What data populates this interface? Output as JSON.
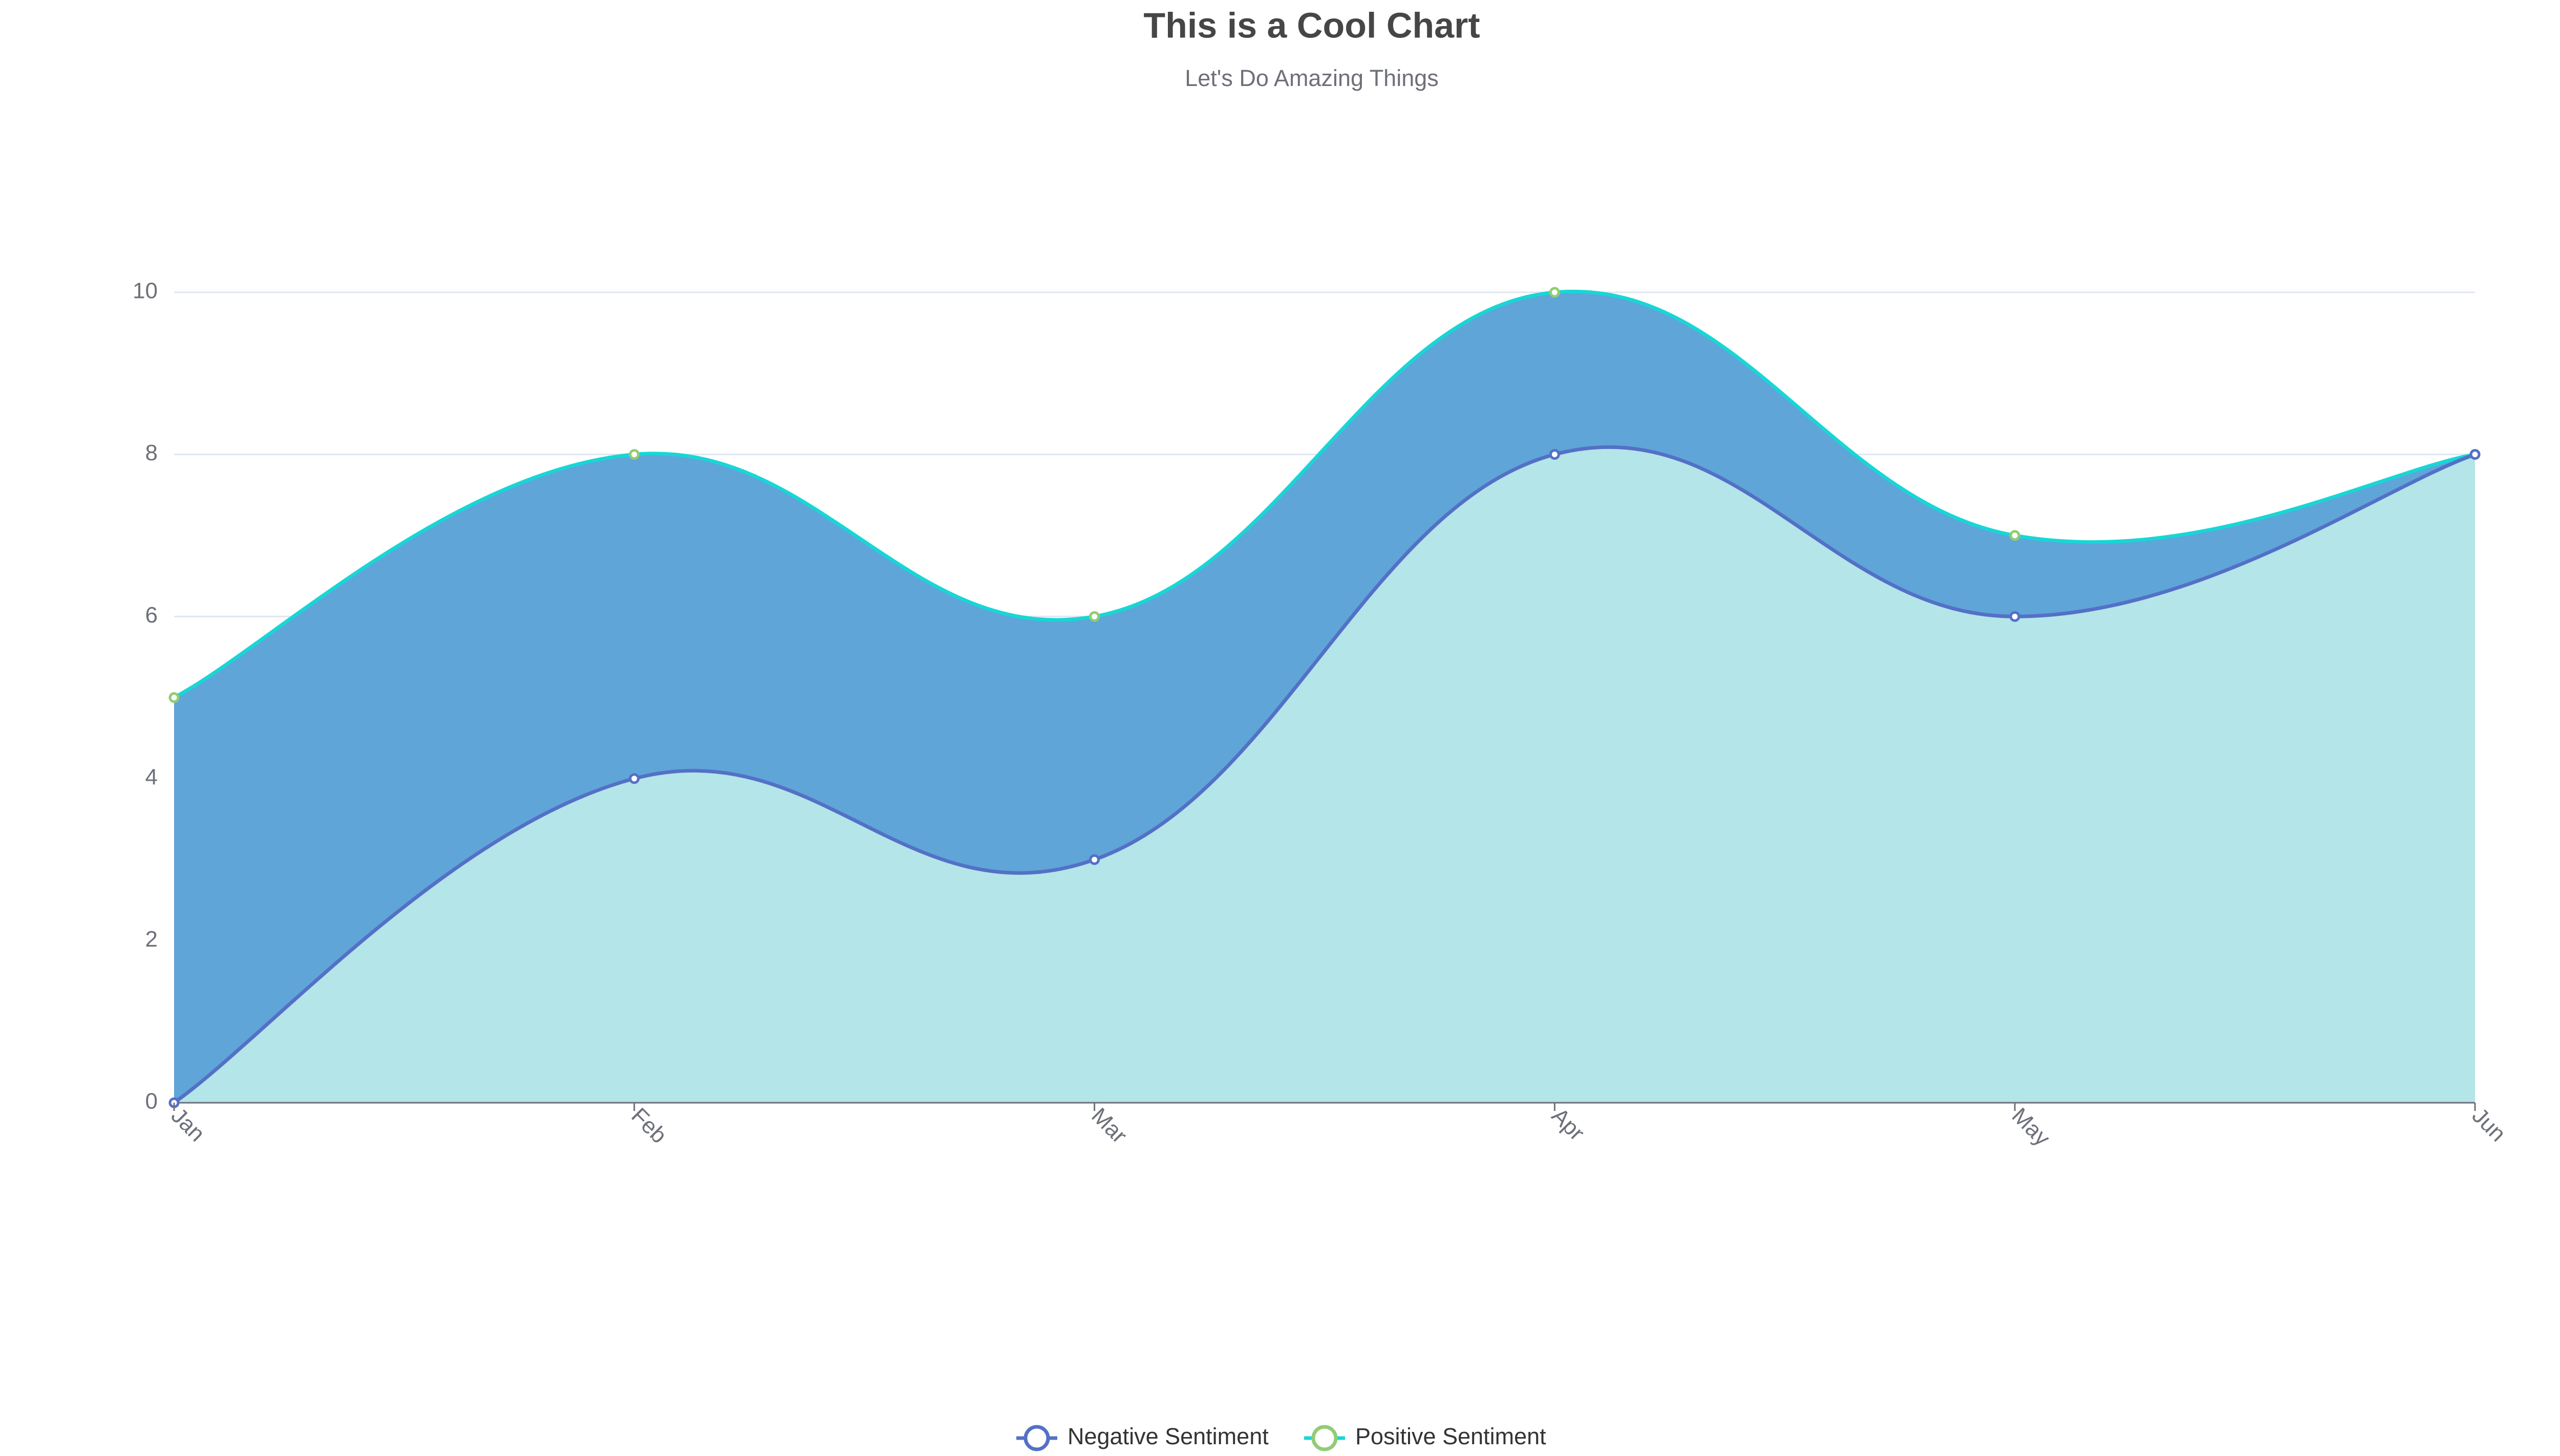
{
  "chart_data": {
    "type": "area",
    "title": "This is a Cool Chart",
    "subtitle": "Let's Do Amazing Things",
    "categories": [
      "Jan",
      "Feb",
      "Mar",
      "Apr",
      "May",
      "Jun"
    ],
    "series": [
      {
        "name": "Negative Sentiment",
        "color": "#5470c6",
        "marker_color": "#5470c6",
        "fill": "#b3e5e9",
        "values": [
          0,
          4,
          3,
          8,
          6,
          8
        ]
      },
      {
        "name": "Positive Sentiment",
        "color": "#18d6d6",
        "marker_color": "#91cc75",
        "fill": "#5fa5d8",
        "values": [
          5,
          8,
          6,
          10,
          7,
          8
        ]
      }
    ],
    "ylim": [
      0,
      10
    ],
    "yticks": [
      0,
      2,
      4,
      6,
      8,
      10
    ],
    "grid": true,
    "legend": "bottom"
  }
}
